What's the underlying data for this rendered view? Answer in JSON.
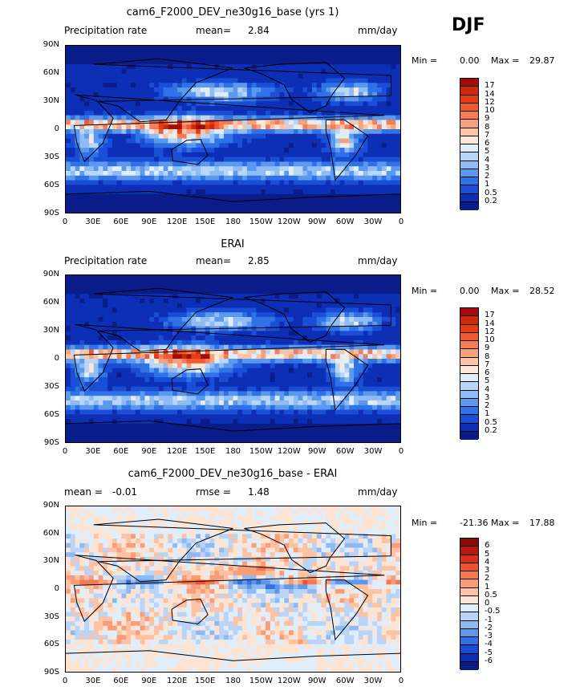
{
  "season": "DJF",
  "chart_data": [
    {
      "type": "heatmap",
      "title": "cam6_F2000_DEV_ne30g16_base (yrs 1)",
      "left_label": "Precipitation rate",
      "mean_label": "mean=",
      "mean_value": "2.84",
      "units": "mm/day",
      "min_label": "Min =",
      "min_value": "0.00",
      "max_label": "Max =",
      "max_value": "29.87",
      "y_ticks": [
        "90N",
        "60N",
        "30N",
        "0",
        "30S",
        "60S",
        "90S"
      ],
      "x_ticks": [
        "0",
        "30E",
        "60E",
        "90E",
        "120E",
        "150E",
        "180",
        "150W",
        "120W",
        "90W",
        "60W",
        "30W",
        "0"
      ],
      "colorbar_labels": [
        "17",
        "14",
        "12",
        "10",
        "9",
        "8",
        "7",
        "6",
        "5",
        "4",
        "3",
        "2",
        "1",
        "0.5",
        "0.2"
      ],
      "colorbar_colors": [
        "#a50b0b",
        "#cc2a0d",
        "#e43d16",
        "#f05a30",
        "#f57d55",
        "#f8a07c",
        "#fbc5a6",
        "#fde7d6",
        "#e0eefc",
        "#b8d6f7",
        "#8fbcf3",
        "#5a99ee",
        "#2f72e6",
        "#1a4ed6",
        "#0c2fb5",
        "#0a1c8a"
      ],
      "colorscale": "sequential-precipitation"
    },
    {
      "type": "heatmap",
      "title": "ERAI",
      "left_label": "Precipitation rate",
      "mean_label": "mean=",
      "mean_value": "2.85",
      "units": "mm/day",
      "min_label": "Min =",
      "min_value": "0.00",
      "max_label": "Max =",
      "max_value": "28.52",
      "y_ticks": [
        "90N",
        "60N",
        "30N",
        "0",
        "30S",
        "60S",
        "90S"
      ],
      "x_ticks": [
        "0",
        "30E",
        "60E",
        "90E",
        "120E",
        "150E",
        "180",
        "150W",
        "120W",
        "90W",
        "60W",
        "30W",
        "0"
      ],
      "colorbar_labels": [
        "17",
        "14",
        "12",
        "10",
        "9",
        "8",
        "7",
        "6",
        "5",
        "4",
        "3",
        "2",
        "1",
        "0.5",
        "0.2"
      ],
      "colorbar_colors": [
        "#a50b0b",
        "#cc2a0d",
        "#e43d16",
        "#f05a30",
        "#f57d55",
        "#f8a07c",
        "#fbc5a6",
        "#fde7d6",
        "#e0eefc",
        "#b8d6f7",
        "#8fbcf3",
        "#5a99ee",
        "#2f72e6",
        "#1a4ed6",
        "#0c2fb5",
        "#0a1c8a"
      ],
      "colorscale": "sequential-precipitation"
    },
    {
      "type": "heatmap",
      "title": "cam6_F2000_DEV_ne30g16_base - ERAI",
      "left_label": "mean =",
      "left_value": "-0.01",
      "mean_label": "rmse =",
      "mean_value": "1.48",
      "units": "mm/day",
      "min_label": "Min =",
      "min_value": "-21.36",
      "max_label": "Max =",
      "max_value": "17.88",
      "y_ticks": [
        "90N",
        "60N",
        "30N",
        "0",
        "30S",
        "60S",
        "90S"
      ],
      "x_ticks": [
        "0",
        "30E",
        "60E",
        "90E",
        "120E",
        "150E",
        "180",
        "150W",
        "120W",
        "90W",
        "60W",
        "30W",
        "0"
      ],
      "colorbar_labels": [
        "6",
        "5",
        "4",
        "3",
        "2",
        "1",
        "0.5",
        "0",
        "-0.5",
        "-1",
        "-2",
        "-3",
        "-4",
        "-5",
        "-6"
      ],
      "colorbar_colors": [
        "#8b0a0a",
        "#b8170f",
        "#d8301a",
        "#ea5230",
        "#f57850",
        "#f99d78",
        "#fcc2a3",
        "#fde4d2",
        "#e0edfb",
        "#b9d4f6",
        "#8fb9f1",
        "#5f97ea",
        "#3470e2",
        "#1a4cd3",
        "#0c2fb0",
        "#081c86"
      ],
      "colorscale": "diverging-difference"
    }
  ]
}
